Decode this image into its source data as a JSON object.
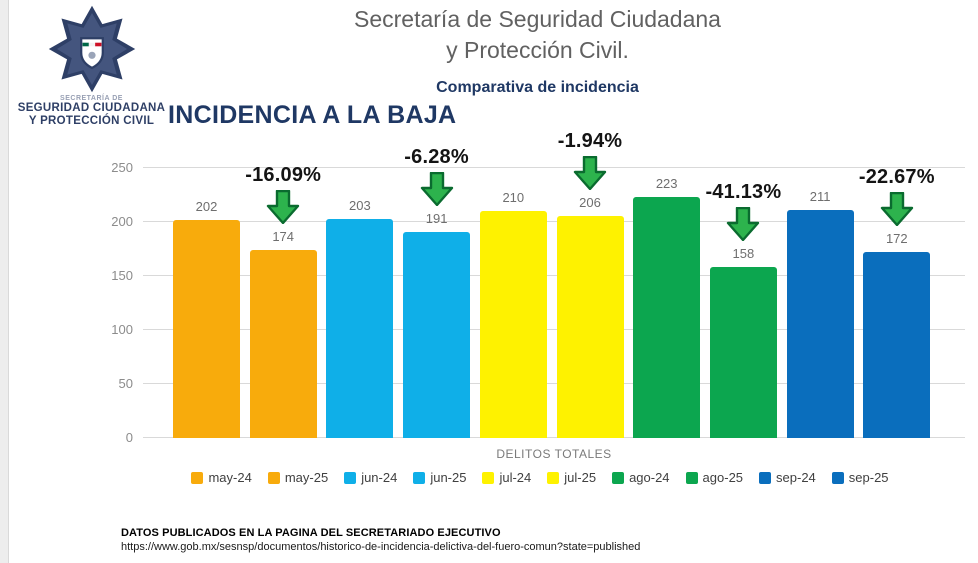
{
  "header": {
    "title_line1": "Secretaría de Seguridad Ciudadana",
    "title_line2": "y Protección Civil.",
    "subtitle": "Comparativa de incidencia",
    "heading": "INCIDENCIA A LA BAJA",
    "logo": {
      "caption_small": "SECRETARÍA DE",
      "caption_line1": "SEGURIDAD CIUDADANA",
      "caption_line2": "Y PROTECCIÓN CIVIL"
    }
  },
  "chart_data": {
    "type": "bar",
    "title": "Comparativa de incidencia",
    "xlabel": "DELITOS TOTALES",
    "ylabel": "",
    "ylim": [
      0,
      250
    ],
    "yticks": [
      0,
      50,
      100,
      150,
      200,
      250
    ],
    "grid": true,
    "legend_position": "bottom",
    "categories": [
      "may-24",
      "may-25",
      "jun-24",
      "jun-25",
      "jul-24",
      "jul-25",
      "ago-24",
      "ago-25",
      "sep-24",
      "sep-25"
    ],
    "values": [
      202,
      174,
      203,
      191,
      210,
      206,
      223,
      158,
      211,
      172
    ],
    "colors": [
      "#F8AB0C",
      "#F8AB0C",
      "#0FAFE8",
      "#0FAFE8",
      "#FEF200",
      "#FEF200",
      "#0CA64F",
      "#0CA64F",
      "#0A6EBD",
      "#0A6EBD"
    ],
    "annotations": [
      {
        "category": "may-25",
        "label": "-16.09%"
      },
      {
        "category": "jun-25",
        "label": "-6.28%"
      },
      {
        "category": "jul-25",
        "label": "-1.94%"
      },
      {
        "category": "ago-25",
        "label": "-41.13%"
      },
      {
        "category": "sep-25",
        "label": "-22.67%"
      }
    ]
  },
  "footer": {
    "line1": "DATOS PUBLICADOS EN LA PAGINA DEL SECRETARIADO EJECUTIVO",
    "line2": "https://www.gob.mx/sesnsp/documentos/historico-de-incidencia-delictiva-del-fuero-comun?state=published"
  },
  "colors": {
    "navy": "#1F3864",
    "title_gray": "#616161",
    "bar_orange": "#F8AB0C",
    "bar_cyan": "#0FAFE8",
    "bar_yellow": "#FEF200",
    "bar_green": "#0CA64F",
    "bar_blue": "#0A6EBD",
    "arrow_fill": "#2DB34D",
    "arrow_border": "#0A6B2F",
    "gridline": "#D9D9D9"
  }
}
